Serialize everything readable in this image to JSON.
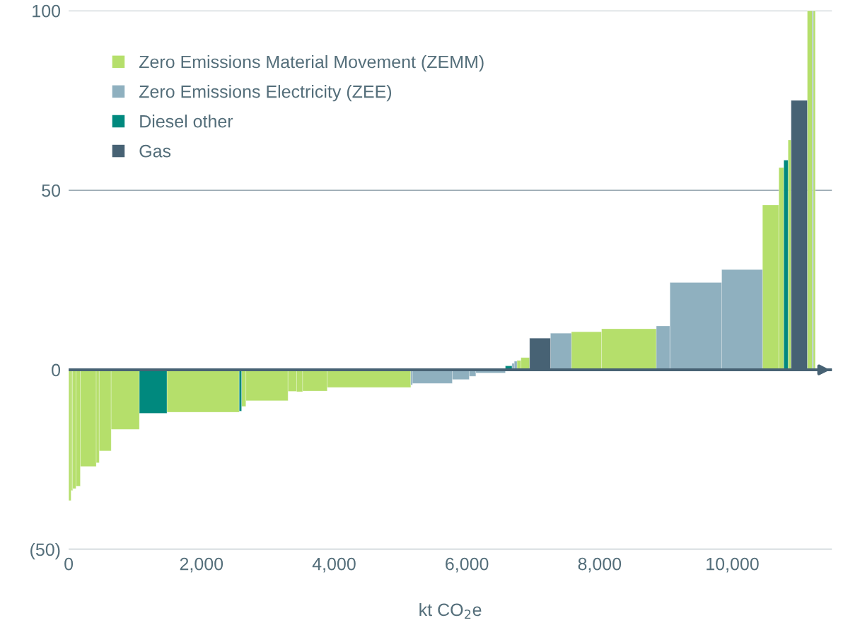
{
  "chart_data": {
    "type": "histogram",
    "xlabel": "kt CO$_{2}$e",
    "bins": [
      0,
      35,
      60,
      110,
      175,
      415,
      460,
      640,
      1065,
      1480,
      2570,
      2605,
      2670,
      3305,
      3435,
      3525,
      3895,
      5155,
      5180,
      5780,
      6035,
      6135,
      6580,
      6680,
      6715,
      6755,
      6815,
      6945,
      7260,
      7575,
      8030,
      8855,
      9060,
      9840,
      10455,
      10700,
      10775,
      10840,
      10885,
      11130,
      11205,
      11220,
      11250
    ],
    "series": [
      {
        "name": "Zero Emissions Material Movement (ZEMM)",
        "color": "#b5df6b",
        "values": [
          -36.4,
          -33.6,
          -33.1,
          -32.4,
          -26.9,
          -25.9,
          -22.6,
          -16.6,
          null,
          -11.8,
          null,
          -10.2,
          -8.6,
          -6.0,
          -6.1,
          -5.9,
          -4.9,
          null,
          null,
          null,
          null,
          null,
          null,
          null,
          null,
          2.6,
          3.4,
          null,
          null,
          10.6,
          11.4,
          null,
          null,
          null,
          45.9,
          56.3,
          null,
          64,
          null,
          100,
          null,
          100
        ]
      },
      {
        "name": "Zero Emissions Electricity (ZEE)",
        "color": "#8fb0bf",
        "values": [
          null,
          null,
          null,
          null,
          null,
          null,
          null,
          null,
          null,
          null,
          null,
          null,
          null,
          null,
          null,
          null,
          null,
          -4.2,
          -3.8,
          -2.7,
          -1.8,
          -0.9,
          null,
          1.8,
          2.4,
          null,
          null,
          null,
          10.2,
          null,
          null,
          12.2,
          24.3,
          27.9,
          null,
          null,
          null,
          null,
          null,
          null,
          100,
          null
        ]
      },
      {
        "name": "Diesel other",
        "color": "#00897e",
        "values": [
          null,
          null,
          null,
          null,
          null,
          null,
          null,
          null,
          -12.1,
          null,
          -11.5,
          null,
          null,
          null,
          null,
          null,
          null,
          null,
          null,
          null,
          null,
          null,
          1.1,
          null,
          null,
          null,
          null,
          null,
          null,
          null,
          null,
          null,
          null,
          null,
          null,
          null,
          58.4,
          null,
          null,
          null,
          null,
          null
        ]
      },
      {
        "name": "Gas",
        "color": "#476274",
        "values": [
          null,
          null,
          null,
          null,
          null,
          null,
          null,
          null,
          null,
          null,
          null,
          null,
          null,
          null,
          null,
          null,
          null,
          null,
          null,
          null,
          null,
          null,
          null,
          null,
          null,
          null,
          null,
          8.8,
          null,
          null,
          null,
          null,
          null,
          null,
          null,
          null,
          null,
          null,
          75,
          null,
          null,
          null
        ]
      }
    ],
    "xlim": [
      0,
      11500
    ],
    "ylim": [
      -50,
      100
    ],
    "ref_lines": [
      {
        "axis": "y",
        "value": 0,
        "color": "#476274"
      }
    ],
    "xticks": [
      {
        "value": 0,
        "label": "0"
      },
      {
        "value": 2000,
        "label": "2,000"
      },
      {
        "value": 4000,
        "label": "4,000"
      },
      {
        "value": 6000,
        "label": "6,000"
      },
      {
        "value": 8000,
        "label": "8,000"
      },
      {
        "value": 10000,
        "label": "10,000"
      }
    ],
    "yticks": [
      {
        "value": -50,
        "label": "(50)"
      },
      0,
      50,
      100
    ],
    "grid": "y",
    "legend": "top left"
  }
}
